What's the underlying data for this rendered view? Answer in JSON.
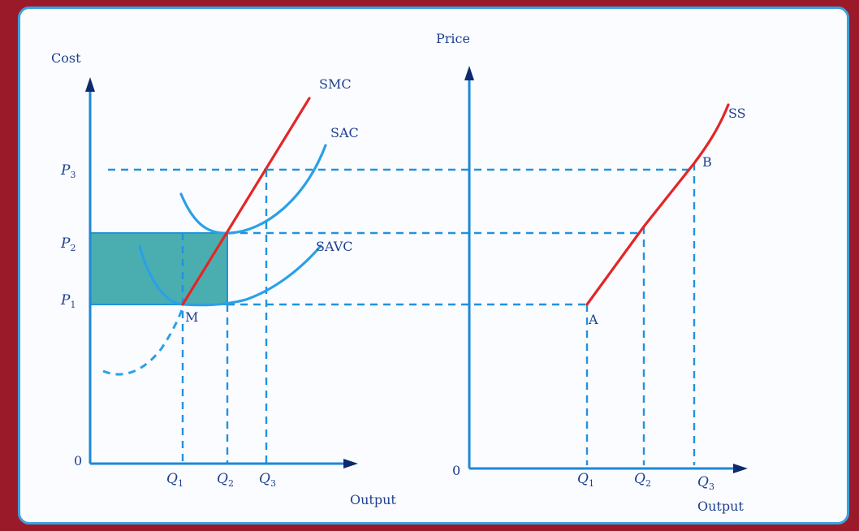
{
  "chart_data": [
    {
      "type": "line",
      "panel": "left",
      "ylabel": "Cost",
      "xlabel": "Output",
      "origin_label": "0",
      "x_ticks": [
        {
          "base": "Q",
          "sub": "1"
        },
        {
          "base": "Q",
          "sub": "2"
        },
        {
          "base": "Q",
          "sub": "3"
        }
      ],
      "y_ticks": [
        {
          "base": "P",
          "sub": "1"
        },
        {
          "base": "P",
          "sub": "2"
        },
        {
          "base": "P",
          "sub": "3"
        }
      ],
      "series": [
        {
          "name": "SMC",
          "color": "#e32626"
        },
        {
          "name": "SAC",
          "color": "#2aa0e6"
        },
        {
          "name": "SAVC",
          "color": "#2aa0e6"
        }
      ],
      "point_labels": [
        "M"
      ],
      "shaded_region": {
        "x": [
          "0",
          "Q2"
        ],
        "y": [
          "P1",
          "P2"
        ],
        "color": "#4aaeb0"
      }
    },
    {
      "type": "line",
      "panel": "right",
      "ylabel": "Price",
      "xlabel": "Output",
      "origin_label": "0",
      "x_ticks": [
        {
          "base": "Q",
          "sub": "1"
        },
        {
          "base": "Q",
          "sub": "2"
        },
        {
          "base": "Q",
          "sub": "3"
        }
      ],
      "series": [
        {
          "name": "SS",
          "color": "#e32626"
        }
      ],
      "point_labels": [
        "A",
        "B"
      ]
    }
  ]
}
